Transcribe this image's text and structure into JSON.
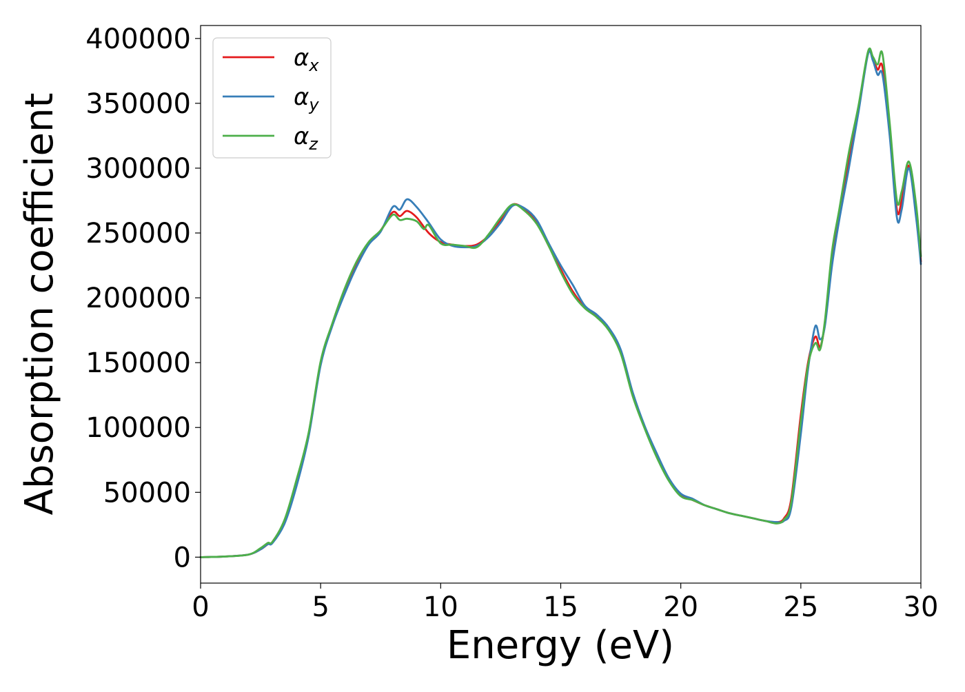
{
  "chart_data": {
    "type": "line",
    "title": "",
    "xlabel": "Energy (eV)",
    "ylabel": "Absorption coefficient",
    "xlim": [
      0,
      30
    ],
    "ylim": [
      -20000,
      410000
    ],
    "x_ticks": [
      0,
      5,
      10,
      15,
      20,
      25,
      30
    ],
    "x_tick_labels": [
      "0",
      "5",
      "10",
      "15",
      "20",
      "25",
      "30"
    ],
    "y_ticks": [
      0,
      50000,
      100000,
      150000,
      200000,
      250000,
      300000,
      350000,
      400000
    ],
    "y_tick_labels": [
      "0",
      "50000",
      "100000",
      "150000",
      "200000",
      "250000",
      "300000",
      "350000",
      "400000"
    ],
    "grid": false,
    "legend_position": "top-left",
    "legend": [
      {
        "symbol": "α",
        "subscript": "x",
        "color": "#e41a1c"
      },
      {
        "symbol": "α",
        "subscript": "y",
        "color": "#377eb8"
      },
      {
        "symbol": "α",
        "subscript": "z",
        "color": "#4daf4a"
      }
    ],
    "series": [
      {
        "name": "αx",
        "color": "#e41a1c",
        "x": [
          0,
          1,
          2,
          2.5,
          2.8,
          3.0,
          3.5,
          4.0,
          4.5,
          5.0,
          5.5,
          6.0,
          6.5,
          7.0,
          7.5,
          8.0,
          8.3,
          8.6,
          9.0,
          9.5,
          10.0,
          10.5,
          11.0,
          11.5,
          12.0,
          12.5,
          13.0,
          13.5,
          14.0,
          14.5,
          15.0,
          15.5,
          16.0,
          16.5,
          17.0,
          17.5,
          18.0,
          18.5,
          19.0,
          19.5,
          20.0,
          20.5,
          21.0,
          21.5,
          22.0,
          22.5,
          23.0,
          23.5,
          24.0,
          24.3,
          24.6,
          25.0,
          25.3,
          25.6,
          25.8,
          26.0,
          26.3,
          26.6,
          27.0,
          27.4,
          27.8,
          28.0,
          28.2,
          28.4,
          28.7,
          29.0,
          29.2,
          29.5,
          29.8,
          30.0
        ],
        "y": [
          0,
          500,
          2000,
          6000,
          10000,
          12000,
          28000,
          58000,
          95000,
          150000,
          180000,
          205000,
          225000,
          242000,
          252000,
          266000,
          263000,
          267000,
          262000,
          250000,
          243000,
          241000,
          240000,
          241000,
          248000,
          260000,
          272000,
          268000,
          258000,
          240000,
          222000,
          205000,
          193000,
          186000,
          176000,
          158000,
          125000,
          100000,
          78000,
          60000,
          48000,
          44000,
          40000,
          37000,
          34000,
          32000,
          30000,
          28000,
          27000,
          30000,
          45000,
          110000,
          150000,
          170000,
          162000,
          180000,
          230000,
          262000,
          305000,
          345000,
          389000,
          385000,
          376000,
          378000,
          330000,
          268000,
          275000,
          302000,
          268000,
          228000
        ]
      },
      {
        "name": "αy",
        "color": "#377eb8",
        "x": [
          0,
          1,
          2,
          2.5,
          2.8,
          3.0,
          3.5,
          4.0,
          4.5,
          5.0,
          5.5,
          6.0,
          6.5,
          7.0,
          7.5,
          8.0,
          8.3,
          8.6,
          9.0,
          9.5,
          10.0,
          10.5,
          11.0,
          11.5,
          12.0,
          12.5,
          13.0,
          13.5,
          14.0,
          14.5,
          15.0,
          15.5,
          16.0,
          16.5,
          17.0,
          17.5,
          18.0,
          18.5,
          19.0,
          19.5,
          20.0,
          20.5,
          21.0,
          21.5,
          22.0,
          22.5,
          23.0,
          23.5,
          24.0,
          24.3,
          24.6,
          25.0,
          25.3,
          25.6,
          25.8,
          26.0,
          26.3,
          26.6,
          27.0,
          27.4,
          27.8,
          28.0,
          28.2,
          28.4,
          28.7,
          29.0,
          29.2,
          29.5,
          29.8,
          30.0
        ],
        "y": [
          0,
          500,
          2000,
          6000,
          10000,
          11000,
          26000,
          55000,
          93000,
          148000,
          179000,
          203000,
          224000,
          241000,
          251000,
          270000,
          268000,
          276000,
          270000,
          258000,
          245000,
          240000,
          239000,
          240000,
          247000,
          258000,
          271000,
          269000,
          260000,
          242000,
          225000,
          210000,
          194000,
          187000,
          177000,
          160000,
          127000,
          101000,
          80000,
          61000,
          49000,
          45000,
          40000,
          37000,
          34000,
          32000,
          30000,
          28000,
          27000,
          28000,
          38000,
          95000,
          145000,
          178000,
          168000,
          178000,
          225000,
          260000,
          300000,
          343000,
          388000,
          383000,
          372000,
          372000,
          325000,
          262000,
          268000,
          300000,
          262000,
          226000
        ]
      },
      {
        "name": "αz",
        "color": "#4daf4a",
        "x": [
          0,
          1,
          2,
          2.5,
          2.8,
          3.0,
          3.5,
          4.0,
          4.5,
          5.0,
          5.5,
          6.0,
          6.5,
          7.0,
          7.5,
          8.0,
          8.3,
          8.6,
          9.0,
          9.3,
          9.5,
          10.0,
          10.5,
          11.0,
          11.5,
          12.0,
          12.5,
          13.0,
          13.5,
          14.0,
          14.5,
          15.0,
          15.5,
          16.0,
          16.5,
          17.0,
          17.5,
          18.0,
          18.5,
          19.0,
          19.5,
          20.0,
          20.5,
          21.0,
          21.5,
          22.0,
          22.5,
          23.0,
          23.5,
          24.0,
          24.3,
          24.6,
          25.0,
          25.3,
          25.6,
          25.8,
          26.0,
          26.3,
          26.6,
          27.0,
          27.4,
          27.8,
          28.0,
          28.2,
          28.4,
          28.7,
          29.0,
          29.2,
          29.5,
          29.8,
          30.0
        ],
        "y": [
          0,
          500,
          2000,
          7000,
          11000,
          12000,
          29000,
          60000,
          96000,
          151000,
          181000,
          207000,
          228000,
          243000,
          252000,
          264000,
          260000,
          261000,
          259000,
          253000,
          256000,
          242000,
          241000,
          240000,
          239000,
          249000,
          262000,
          272000,
          267000,
          257000,
          240000,
          220000,
          203000,
          192000,
          185000,
          175000,
          157000,
          124000,
          99000,
          77000,
          59000,
          47000,
          44000,
          40000,
          37000,
          34000,
          32000,
          30000,
          28000,
          26000,
          29000,
          42000,
          105000,
          148000,
          165000,
          160000,
          182000,
          236000,
          268000,
          312000,
          348000,
          390000,
          386000,
          380000,
          388000,
          335000,
          275000,
          282000,
          305000,
          272000,
          232000
        ]
      }
    ]
  }
}
